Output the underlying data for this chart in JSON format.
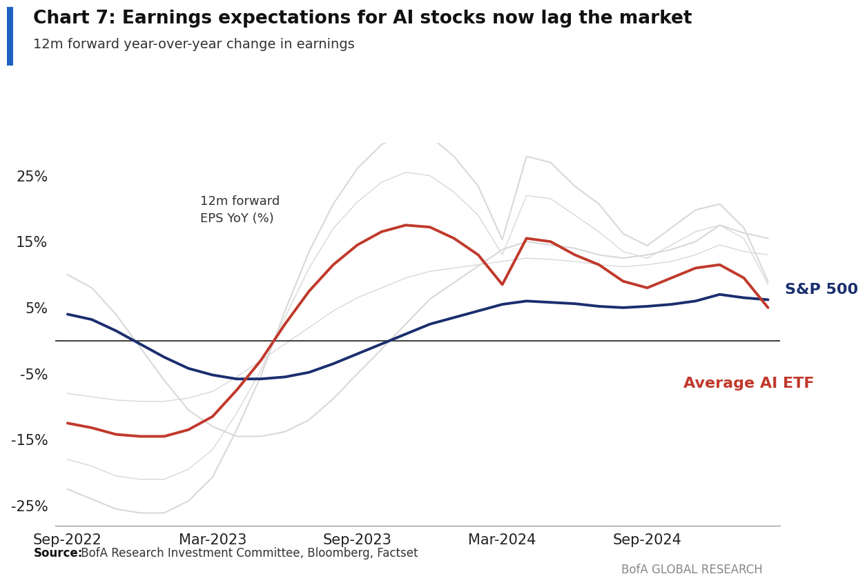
{
  "title_bold": "Chart 7: Earnings expectations for AI stocks now lag the market",
  "subtitle": "12m forward year-over-year change in earnings",
  "source_label": "Source:",
  "source_rest": " BofA Research Investment Committee, Bloomberg, Factset",
  "bofa_text": "BofA GLOBAL RESEARCH",
  "annotation": "12m forward\nEPS YoY (%)",
  "sp500_label": "S&P 500",
  "ai_etf_label": "Average AI ETF",
  "sp500_color": "#1a2e6e",
  "ai_etf_color": "#c0392b",
  "bg_color": "#ffffff",
  "zero_line_color": "#222222",
  "watermark_color": "#d8d8d8",
  "blue_bar_color": "#2060c0",
  "ylim": [
    -28,
    30
  ],
  "yticks": [
    -25,
    -15,
    -5,
    5,
    15,
    25
  ],
  "ytick_labels": [
    "-25%",
    "-15%",
    "-5%",
    "5%",
    "15%",
    "25%"
  ],
  "xtick_labels": [
    "Sep-2022",
    "Mar-2023",
    "Sep-2023",
    "Mar-2024",
    "Sep-2024"
  ],
  "sp500_x": [
    0,
    1,
    2,
    3,
    4,
    5,
    6,
    7,
    8,
    9,
    10,
    11,
    12,
    13,
    14,
    15,
    16,
    17,
    18,
    19,
    20,
    21,
    22,
    23,
    24,
    25,
    26,
    27,
    28,
    29
  ],
  "sp500_y": [
    4.0,
    3.2,
    1.5,
    -0.5,
    -2.5,
    -4.2,
    -5.2,
    -5.8,
    -5.8,
    -5.5,
    -4.8,
    -3.5,
    -2.0,
    -0.5,
    1.0,
    2.5,
    3.5,
    4.5,
    5.5,
    6.0,
    5.8,
    5.6,
    5.2,
    5.0,
    5.2,
    5.5,
    6.0,
    7.0,
    6.5,
    6.2
  ],
  "ai_etf_x": [
    0,
    1,
    2,
    3,
    4,
    5,
    6,
    7,
    8,
    9,
    10,
    11,
    12,
    13,
    14,
    15,
    16,
    17,
    18,
    19,
    20,
    21,
    22,
    23,
    24,
    25,
    26,
    27,
    28,
    29
  ],
  "ai_etf_y": [
    -12.5,
    -13.2,
    -14.2,
    -14.5,
    -14.5,
    -13.5,
    -11.5,
    -7.5,
    -3.0,
    2.5,
    7.5,
    11.5,
    14.5,
    16.5,
    17.5,
    17.2,
    15.5,
    13.0,
    8.5,
    15.5,
    15.0,
    13.0,
    11.5,
    9.0,
    8.0,
    9.5,
    11.0,
    11.5,
    9.5,
    5.0
  ],
  "wm_sp_y": [
    10.0,
    8.0,
    4.0,
    -1.0,
    -6.0,
    -10.5,
    -13.0,
    -14.5,
    -14.5,
    -13.8,
    -12.0,
    -8.8,
    -5.0,
    -1.3,
    2.5,
    6.3,
    8.8,
    11.3,
    13.8,
    15.0,
    14.5,
    14.0,
    13.0,
    12.5,
    13.0,
    13.8,
    15.0,
    17.5,
    16.3,
    15.5
  ],
  "wm_ai_y": [
    -22.5,
    -24.0,
    -25.5,
    -26.1,
    -26.1,
    -24.3,
    -20.7,
    -13.5,
    -5.4,
    4.5,
    13.5,
    20.7,
    26.1,
    29.7,
    31.5,
    30.96,
    27.9,
    23.4,
    15.3,
    27.9,
    27.0,
    23.4,
    20.7,
    16.2,
    14.4,
    17.1,
    19.8,
    20.7,
    17.1,
    9.0
  ],
  "wm_sp2_y": [
    -8.0,
    -8.5,
    -9.0,
    -9.2,
    -9.2,
    -8.7,
    -7.7,
    -5.5,
    -3.0,
    -0.5,
    2.0,
    4.5,
    6.5,
    8.0,
    9.5,
    10.5,
    11.0,
    11.5,
    12.0,
    12.5,
    12.3,
    12.0,
    11.5,
    11.2,
    11.5,
    12.0,
    13.0,
    14.5,
    13.5,
    13.0
  ],
  "wm_ai2_y": [
    -18.0,
    -19.0,
    -20.5,
    -21.0,
    -21.0,
    -19.5,
    -16.5,
    -11.0,
    -4.5,
    3.5,
    11.0,
    17.0,
    21.0,
    24.0,
    25.5,
    25.0,
    22.5,
    19.0,
    13.0,
    22.0,
    21.5,
    19.0,
    16.5,
    13.5,
    12.5,
    14.5,
    16.5,
    17.5,
    15.5,
    8.5
  ]
}
